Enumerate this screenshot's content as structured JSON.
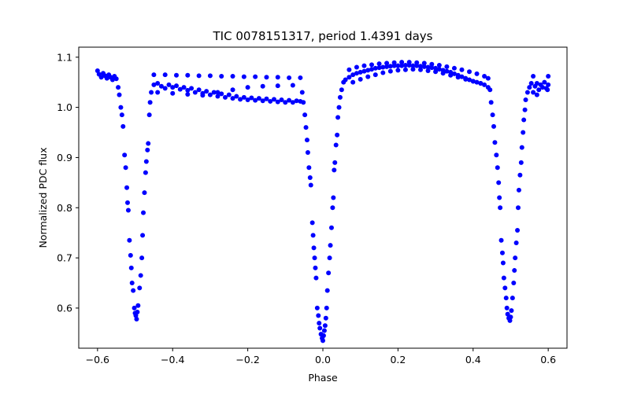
{
  "chart_data": {
    "type": "scatter",
    "title": "TIC 0078151317, period 1.4391 days",
    "xlabel": "Phase",
    "ylabel": "Normalized PDC flux",
    "xlim": [
      -0.65,
      0.65
    ],
    "ylim": [
      0.52,
      1.12
    ],
    "xticks": [
      -0.6,
      -0.4,
      -0.2,
      0.0,
      0.2,
      0.4,
      0.6
    ],
    "xtick_labels": [
      "−0.6",
      "−0.4",
      "−0.2",
      "0.0",
      "0.2",
      "0.4",
      "0.6"
    ],
    "yticks": [
      0.6,
      0.7,
      0.8,
      0.9,
      1.0,
      1.1
    ],
    "ytick_labels": [
      "0.6",
      "0.7",
      "0.8",
      "0.9",
      "1.0",
      "1.1"
    ],
    "grid": false,
    "marker_color": "#0000ff",
    "period_days": 1.4391,
    "series": [
      {
        "points": [
          [
            -0.6,
            1.073
          ],
          [
            -0.596,
            1.066
          ],
          [
            -0.59,
            1.06
          ],
          [
            -0.585,
            1.068
          ],
          [
            -0.58,
            1.063
          ],
          [
            -0.575,
            1.058
          ],
          [
            -0.57,
            1.065
          ],
          [
            -0.565,
            1.06
          ],
          [
            -0.56,
            1.055
          ],
          [
            -0.555,
            1.062
          ],
          [
            -0.55,
            1.057
          ],
          [
            -0.545,
            1.04
          ],
          [
            -0.542,
            1.025
          ],
          [
            -0.538,
            1.0
          ],
          [
            -0.535,
            0.985
          ],
          [
            -0.532,
            0.962
          ],
          [
            -0.528,
            0.905
          ],
          [
            -0.525,
            0.88
          ],
          [
            -0.522,
            0.84
          ],
          [
            -0.52,
            0.81
          ],
          [
            -0.518,
            0.795
          ],
          [
            -0.515,
            0.735
          ],
          [
            -0.512,
            0.705
          ],
          [
            -0.51,
            0.68
          ],
          [
            -0.508,
            0.65
          ],
          [
            -0.505,
            0.635
          ],
          [
            -0.502,
            0.6
          ],
          [
            -0.5,
            0.59
          ],
          [
            -0.498,
            0.585
          ],
          [
            -0.496,
            0.578
          ],
          [
            -0.494,
            0.592
          ],
          [
            -0.492,
            0.605
          ],
          [
            -0.488,
            0.64
          ],
          [
            -0.485,
            0.665
          ],
          [
            -0.482,
            0.7
          ],
          [
            -0.48,
            0.745
          ],
          [
            -0.478,
            0.79
          ],
          [
            -0.475,
            0.83
          ],
          [
            -0.472,
            0.87
          ],
          [
            -0.47,
            0.892
          ],
          [
            -0.467,
            0.915
          ],
          [
            -0.465,
            0.928
          ],
          [
            -0.462,
            0.985
          ],
          [
            -0.46,
            1.01
          ],
          [
            -0.457,
            1.03
          ],
          [
            -0.45,
            1.045
          ],
          [
            -0.44,
            1.048
          ],
          [
            -0.43,
            1.042
          ],
          [
            -0.42,
            1.038
          ],
          [
            -0.41,
            1.045
          ],
          [
            -0.4,
            1.04
          ],
          [
            -0.39,
            1.043
          ],
          [
            -0.38,
            1.036
          ],
          [
            -0.37,
            1.04
          ],
          [
            -0.36,
            1.034
          ],
          [
            -0.35,
            1.038
          ],
          [
            -0.34,
            1.03
          ],
          [
            -0.33,
            1.035
          ],
          [
            -0.32,
            1.028
          ],
          [
            -0.31,
            1.032
          ],
          [
            -0.3,
            1.025
          ],
          [
            -0.29,
            1.03
          ],
          [
            -0.28,
            1.022
          ],
          [
            -0.27,
            1.027
          ],
          [
            -0.26,
            1.02
          ],
          [
            -0.25,
            1.025
          ],
          [
            -0.24,
            1.018
          ],
          [
            -0.23,
            1.022
          ],
          [
            -0.22,
            1.016
          ],
          [
            -0.21,
            1.02
          ],
          [
            -0.2,
            1.015
          ],
          [
            -0.19,
            1.019
          ],
          [
            -0.18,
            1.014
          ],
          [
            -0.17,
            1.018
          ],
          [
            -0.16,
            1.013
          ],
          [
            -0.15,
            1.017
          ],
          [
            -0.14,
            1.012
          ],
          [
            -0.13,
            1.016
          ],
          [
            -0.12,
            1.011
          ],
          [
            -0.11,
            1.015
          ],
          [
            -0.1,
            1.01
          ],
          [
            -0.09,
            1.014
          ],
          [
            -0.08,
            1.01
          ],
          [
            -0.07,
            1.013
          ],
          [
            -0.06,
            1.012
          ],
          [
            -0.45,
            1.065
          ],
          [
            -0.42,
            1.065
          ],
          [
            -0.39,
            1.064
          ],
          [
            -0.36,
            1.064
          ],
          [
            -0.33,
            1.063
          ],
          [
            -0.3,
            1.063
          ],
          [
            -0.27,
            1.062
          ],
          [
            -0.24,
            1.062
          ],
          [
            -0.21,
            1.061
          ],
          [
            -0.18,
            1.061
          ],
          [
            -0.15,
            1.06
          ],
          [
            -0.12,
            1.06
          ],
          [
            -0.09,
            1.059
          ],
          [
            -0.06,
            1.059
          ],
          [
            -0.44,
            1.03
          ],
          [
            -0.4,
            1.028
          ],
          [
            -0.36,
            1.026
          ],
          [
            -0.32,
            1.024
          ],
          [
            -0.28,
            1.03
          ],
          [
            -0.24,
            1.035
          ],
          [
            -0.2,
            1.04
          ],
          [
            -0.16,
            1.042
          ],
          [
            -0.12,
            1.043
          ],
          [
            -0.08,
            1.044
          ],
          [
            -0.055,
            1.03
          ],
          [
            -0.052,
            1.01
          ],
          [
            -0.048,
            0.985
          ],
          [
            -0.045,
            0.96
          ],
          [
            -0.042,
            0.935
          ],
          [
            -0.04,
            0.91
          ],
          [
            -0.037,
            0.88
          ],
          [
            -0.034,
            0.86
          ],
          [
            -0.032,
            0.845
          ],
          [
            -0.028,
            0.77
          ],
          [
            -0.026,
            0.745
          ],
          [
            -0.024,
            0.72
          ],
          [
            -0.022,
            0.7
          ],
          [
            -0.02,
            0.68
          ],
          [
            -0.018,
            0.66
          ],
          [
            -0.015,
            0.6
          ],
          [
            -0.012,
            0.585
          ],
          [
            -0.01,
            0.57
          ],
          [
            -0.008,
            0.56
          ],
          [
            -0.005,
            0.548
          ],
          [
            -0.002,
            0.54
          ],
          [
            0.0,
            0.535
          ],
          [
            0.002,
            0.545
          ],
          [
            0.004,
            0.555
          ],
          [
            0.006,
            0.565
          ],
          [
            0.008,
            0.58
          ],
          [
            0.01,
            0.6
          ],
          [
            0.012,
            0.635
          ],
          [
            0.015,
            0.67
          ],
          [
            0.018,
            0.7
          ],
          [
            0.02,
            0.725
          ],
          [
            0.023,
            0.76
          ],
          [
            0.026,
            0.8
          ],
          [
            0.028,
            0.82
          ],
          [
            0.03,
            0.875
          ],
          [
            0.032,
            0.89
          ],
          [
            0.035,
            0.925
          ],
          [
            0.038,
            0.945
          ],
          [
            0.04,
            0.98
          ],
          [
            0.043,
            1.0
          ],
          [
            0.046,
            1.02
          ],
          [
            0.05,
            1.035
          ],
          [
            0.055,
            1.05
          ],
          [
            0.06,
            1.055
          ],
          [
            0.07,
            1.06
          ],
          [
            0.08,
            1.065
          ],
          [
            0.09,
            1.068
          ],
          [
            0.1,
            1.07
          ],
          [
            0.11,
            1.072
          ],
          [
            0.12,
            1.074
          ],
          [
            0.13,
            1.076
          ],
          [
            0.14,
            1.078
          ],
          [
            0.15,
            1.079
          ],
          [
            0.16,
            1.08
          ],
          [
            0.17,
            1.081
          ],
          [
            0.18,
            1.082
          ],
          [
            0.19,
            1.083
          ],
          [
            0.2,
            1.083
          ],
          [
            0.21,
            1.083
          ],
          [
            0.22,
            1.084
          ],
          [
            0.23,
            1.084
          ],
          [
            0.24,
            1.083
          ],
          [
            0.25,
            1.083
          ],
          [
            0.26,
            1.082
          ],
          [
            0.27,
            1.081
          ],
          [
            0.28,
            1.08
          ],
          [
            0.29,
            1.079
          ],
          [
            0.3,
            1.078
          ],
          [
            0.31,
            1.076
          ],
          [
            0.32,
            1.074
          ],
          [
            0.33,
            1.072
          ],
          [
            0.34,
            1.07
          ],
          [
            0.35,
            1.067
          ],
          [
            0.36,
            1.064
          ],
          [
            0.37,
            1.061
          ],
          [
            0.38,
            1.058
          ],
          [
            0.39,
            1.055
          ],
          [
            0.4,
            1.052
          ],
          [
            0.41,
            1.05
          ],
          [
            0.42,
            1.048
          ],
          [
            0.43,
            1.045
          ],
          [
            0.44,
            1.04
          ],
          [
            0.07,
            1.075
          ],
          [
            0.09,
            1.08
          ],
          [
            0.11,
            1.083
          ],
          [
            0.13,
            1.085
          ],
          [
            0.15,
            1.087
          ],
          [
            0.17,
            1.088
          ],
          [
            0.19,
            1.089
          ],
          [
            0.21,
            1.09
          ],
          [
            0.23,
            1.09
          ],
          [
            0.25,
            1.089
          ],
          [
            0.27,
            1.088
          ],
          [
            0.29,
            1.086
          ],
          [
            0.31,
            1.084
          ],
          [
            0.33,
            1.081
          ],
          [
            0.35,
            1.078
          ],
          [
            0.37,
            1.075
          ],
          [
            0.39,
            1.071
          ],
          [
            0.41,
            1.067
          ],
          [
            0.43,
            1.062
          ],
          [
            0.44,
            1.058
          ],
          [
            0.08,
            1.05
          ],
          [
            0.1,
            1.056
          ],
          [
            0.12,
            1.061
          ],
          [
            0.14,
            1.065
          ],
          [
            0.16,
            1.069
          ],
          [
            0.18,
            1.072
          ],
          [
            0.2,
            1.074
          ],
          [
            0.22,
            1.075
          ],
          [
            0.24,
            1.076
          ],
          [
            0.26,
            1.075
          ],
          [
            0.28,
            1.073
          ],
          [
            0.3,
            1.071
          ],
          [
            0.32,
            1.068
          ],
          [
            0.34,
            1.064
          ],
          [
            0.36,
            1.06
          ],
          [
            0.38,
            1.056
          ],
          [
            0.4,
            1.052
          ],
          [
            0.42,
            1.048
          ],
          [
            0.445,
            1.035
          ],
          [
            0.448,
            1.01
          ],
          [
            0.452,
            0.985
          ],
          [
            0.455,
            0.962
          ],
          [
            0.458,
            0.93
          ],
          [
            0.462,
            0.905
          ],
          [
            0.465,
            0.88
          ],
          [
            0.468,
            0.85
          ],
          [
            0.47,
            0.82
          ],
          [
            0.472,
            0.8
          ],
          [
            0.475,
            0.735
          ],
          [
            0.478,
            0.71
          ],
          [
            0.48,
            0.69
          ],
          [
            0.482,
            0.66
          ],
          [
            0.485,
            0.64
          ],
          [
            0.488,
            0.62
          ],
          [
            0.49,
            0.6
          ],
          [
            0.492,
            0.588
          ],
          [
            0.495,
            0.58
          ],
          [
            0.498,
            0.575
          ],
          [
            0.5,
            0.582
          ],
          [
            0.502,
            0.595
          ],
          [
            0.505,
            0.62
          ],
          [
            0.508,
            0.65
          ],
          [
            0.51,
            0.675
          ],
          [
            0.512,
            0.7
          ],
          [
            0.515,
            0.73
          ],
          [
            0.518,
            0.755
          ],
          [
            0.52,
            0.8
          ],
          [
            0.522,
            0.835
          ],
          [
            0.525,
            0.865
          ],
          [
            0.528,
            0.89
          ],
          [
            0.53,
            0.92
          ],
          [
            0.533,
            0.95
          ],
          [
            0.535,
            0.975
          ],
          [
            0.538,
            0.995
          ],
          [
            0.54,
            1.015
          ],
          [
            0.545,
            1.03
          ],
          [
            0.55,
            1.04
          ],
          [
            0.555,
            1.048
          ],
          [
            0.56,
            1.062
          ],
          [
            0.565,
            1.042
          ],
          [
            0.57,
            1.048
          ],
          [
            0.575,
            1.035
          ],
          [
            0.58,
            1.045
          ],
          [
            0.585,
            1.04
          ],
          [
            0.59,
            1.05
          ],
          [
            0.595,
            1.038
          ],
          [
            0.6,
            1.045
          ],
          [
            0.6,
            1.062
          ],
          [
            0.598,
            1.035
          ],
          [
            0.56,
            1.03
          ],
          [
            0.57,
            1.025
          ]
        ]
      }
    ]
  }
}
